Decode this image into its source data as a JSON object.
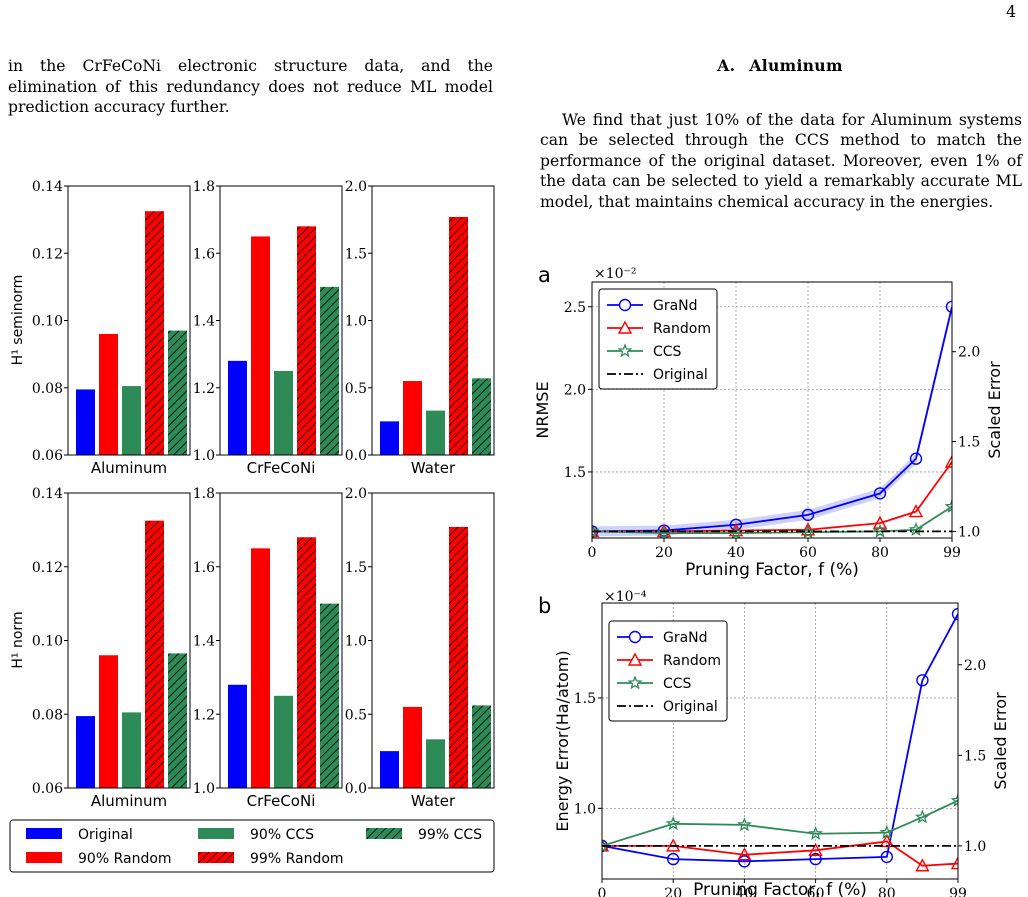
{
  "page_number": "4",
  "left_paragraph": "in the CrFeCoNi electronic structure data, and the elimination of this redundancy does not reduce ML model prediction accuracy further.",
  "section": {
    "number": "A.",
    "title": "Aluminum"
  },
  "right_paragraph": "We find that just 10% of the data for Aluminum systems can be selected through the CCS method to match the performance of the original dataset. Moreover, even 1% of the data can be selected to yield a remarkably accurate ML model, that maintains chemical accuracy in the energies.",
  "colors": {
    "original": "#0000ff",
    "random90": "#ff0000",
    "ccs90": "#2e8b57",
    "random99": "#ff0000",
    "ccs99": "#2e8b57",
    "grand": "#0000ff",
    "random": "#ff0000",
    "ccs": "#2e8b57"
  },
  "chart_data": [
    {
      "type": "bar",
      "panel": "H1 seminorm",
      "ylabel": "H¹ seminorm",
      "legend_entries": [
        "Original",
        "90% Random",
        "90% CCS",
        "99% Random",
        "99% CCS"
      ],
      "groups": [
        {
          "category": "Aluminum",
          "ylim": [
            0.06,
            0.14
          ],
          "ticks": [
            "0.06",
            "0.08",
            "0.10",
            "0.12",
            "0.14"
          ],
          "values": [
            0.0795,
            0.096,
            0.0805,
            0.1325,
            0.097
          ]
        },
        {
          "category": "CrFeCoNi",
          "ylim": [
            1.0,
            1.8
          ],
          "ticks": [
            "1.0",
            "1.2",
            "1.4",
            "1.6",
            "1.8"
          ],
          "values": [
            1.28,
            1.65,
            1.25,
            1.68,
            1.5
          ]
        },
        {
          "category": "Water",
          "ylim": [
            0.0,
            2.0
          ],
          "ticks": [
            "0.0",
            "0.5",
            "1.0",
            "1.5",
            "2.0"
          ],
          "values": [
            0.25,
            0.55,
            0.33,
            1.77,
            0.57
          ]
        }
      ]
    },
    {
      "type": "bar",
      "panel": "H1 norm",
      "ylabel": "H¹ norm",
      "legend_entries": [
        "Original",
        "90% Random",
        "90% CCS",
        "99% Random",
        "99% CCS"
      ],
      "groups": [
        {
          "category": "Aluminum",
          "ylim": [
            0.06,
            0.14
          ],
          "ticks": [
            "0.06",
            "0.08",
            "0.10",
            "0.12",
            "0.14"
          ],
          "values": [
            0.0795,
            0.096,
            0.0805,
            0.1325,
            0.0965
          ]
        },
        {
          "category": "CrFeCoNi",
          "ylim": [
            1.0,
            1.8
          ],
          "ticks": [
            "1.0",
            "1.2",
            "1.4",
            "1.6",
            "1.8"
          ],
          "values": [
            1.28,
            1.65,
            1.25,
            1.68,
            1.5
          ]
        },
        {
          "category": "Water",
          "ylim": [
            0.0,
            2.0
          ],
          "ticks": [
            "0.0",
            "0.5",
            "1.0",
            "1.5",
            "2.0"
          ],
          "values": [
            0.25,
            0.55,
            0.33,
            1.77,
            0.56
          ]
        }
      ]
    },
    {
      "type": "line",
      "panel_label": "a",
      "ylabel": "NRMSE",
      "y2label": "Scaled Error",
      "xlabel": "Pruning Factor, f (%)",
      "exponent": "×10⁻²",
      "x_positions": [
        0,
        20,
        40,
        60,
        80,
        90,
        99
      ],
      "x_tick_labels": [
        "0",
        "20",
        "40",
        "60",
        "80",
        "99"
      ],
      "ylim": [
        1.1,
        2.65
      ],
      "y_ticks": [
        "1.5",
        "2.0",
        "2.5"
      ],
      "y2_ticks": [
        "1.0",
        "1.5",
        "2.0"
      ],
      "series": [
        {
          "name": "GraNd",
          "marker": "circle",
          "values": [
            1.14,
            1.145,
            1.18,
            1.24,
            1.37,
            1.58,
            2.5
          ]
        },
        {
          "name": "Random",
          "marker": "triangle",
          "values": [
            1.14,
            1.14,
            1.145,
            1.15,
            1.19,
            1.26,
            1.56
          ]
        },
        {
          "name": "CCS",
          "marker": "star",
          "values": [
            1.14,
            1.13,
            1.13,
            1.135,
            1.14,
            1.15,
            1.29
          ]
        },
        {
          "name": "Original",
          "marker": "none",
          "values": [
            1.14,
            1.14,
            1.14,
            1.14,
            1.14,
            1.14,
            1.14
          ]
        }
      ]
    },
    {
      "type": "line",
      "panel_label": "b",
      "ylabel": "Energy Error(Ha/atom)",
      "y2label": "Scaled Error",
      "xlabel": "Pruning Factor, f (%)",
      "exponent": "×10⁻⁴",
      "x_positions": [
        0,
        20,
        40,
        60,
        80,
        90,
        99
      ],
      "x_tick_labels": [
        "0",
        "20",
        "40",
        "60",
        "80",
        "99"
      ],
      "ylim": [
        0.68,
        1.93
      ],
      "y_ticks": [
        "1.0",
        "1.5"
      ],
      "y2_ticks": [
        "1.0",
        "1.5",
        "2.0"
      ],
      "series": [
        {
          "name": "GraNd",
          "marker": "circle",
          "values": [
            0.83,
            0.77,
            0.76,
            0.77,
            0.78,
            1.58,
            1.88
          ]
        },
        {
          "name": "Random",
          "marker": "triangle",
          "values": [
            0.83,
            0.83,
            0.79,
            0.81,
            0.85,
            0.74,
            0.75
          ]
        },
        {
          "name": "CCS",
          "marker": "star",
          "values": [
            0.83,
            0.93,
            0.925,
            0.885,
            0.89,
            0.96,
            1.035
          ]
        },
        {
          "name": "Original",
          "marker": "none",
          "values": [
            0.83,
            0.83,
            0.83,
            0.83,
            0.83,
            0.83,
            0.83
          ]
        }
      ]
    }
  ]
}
